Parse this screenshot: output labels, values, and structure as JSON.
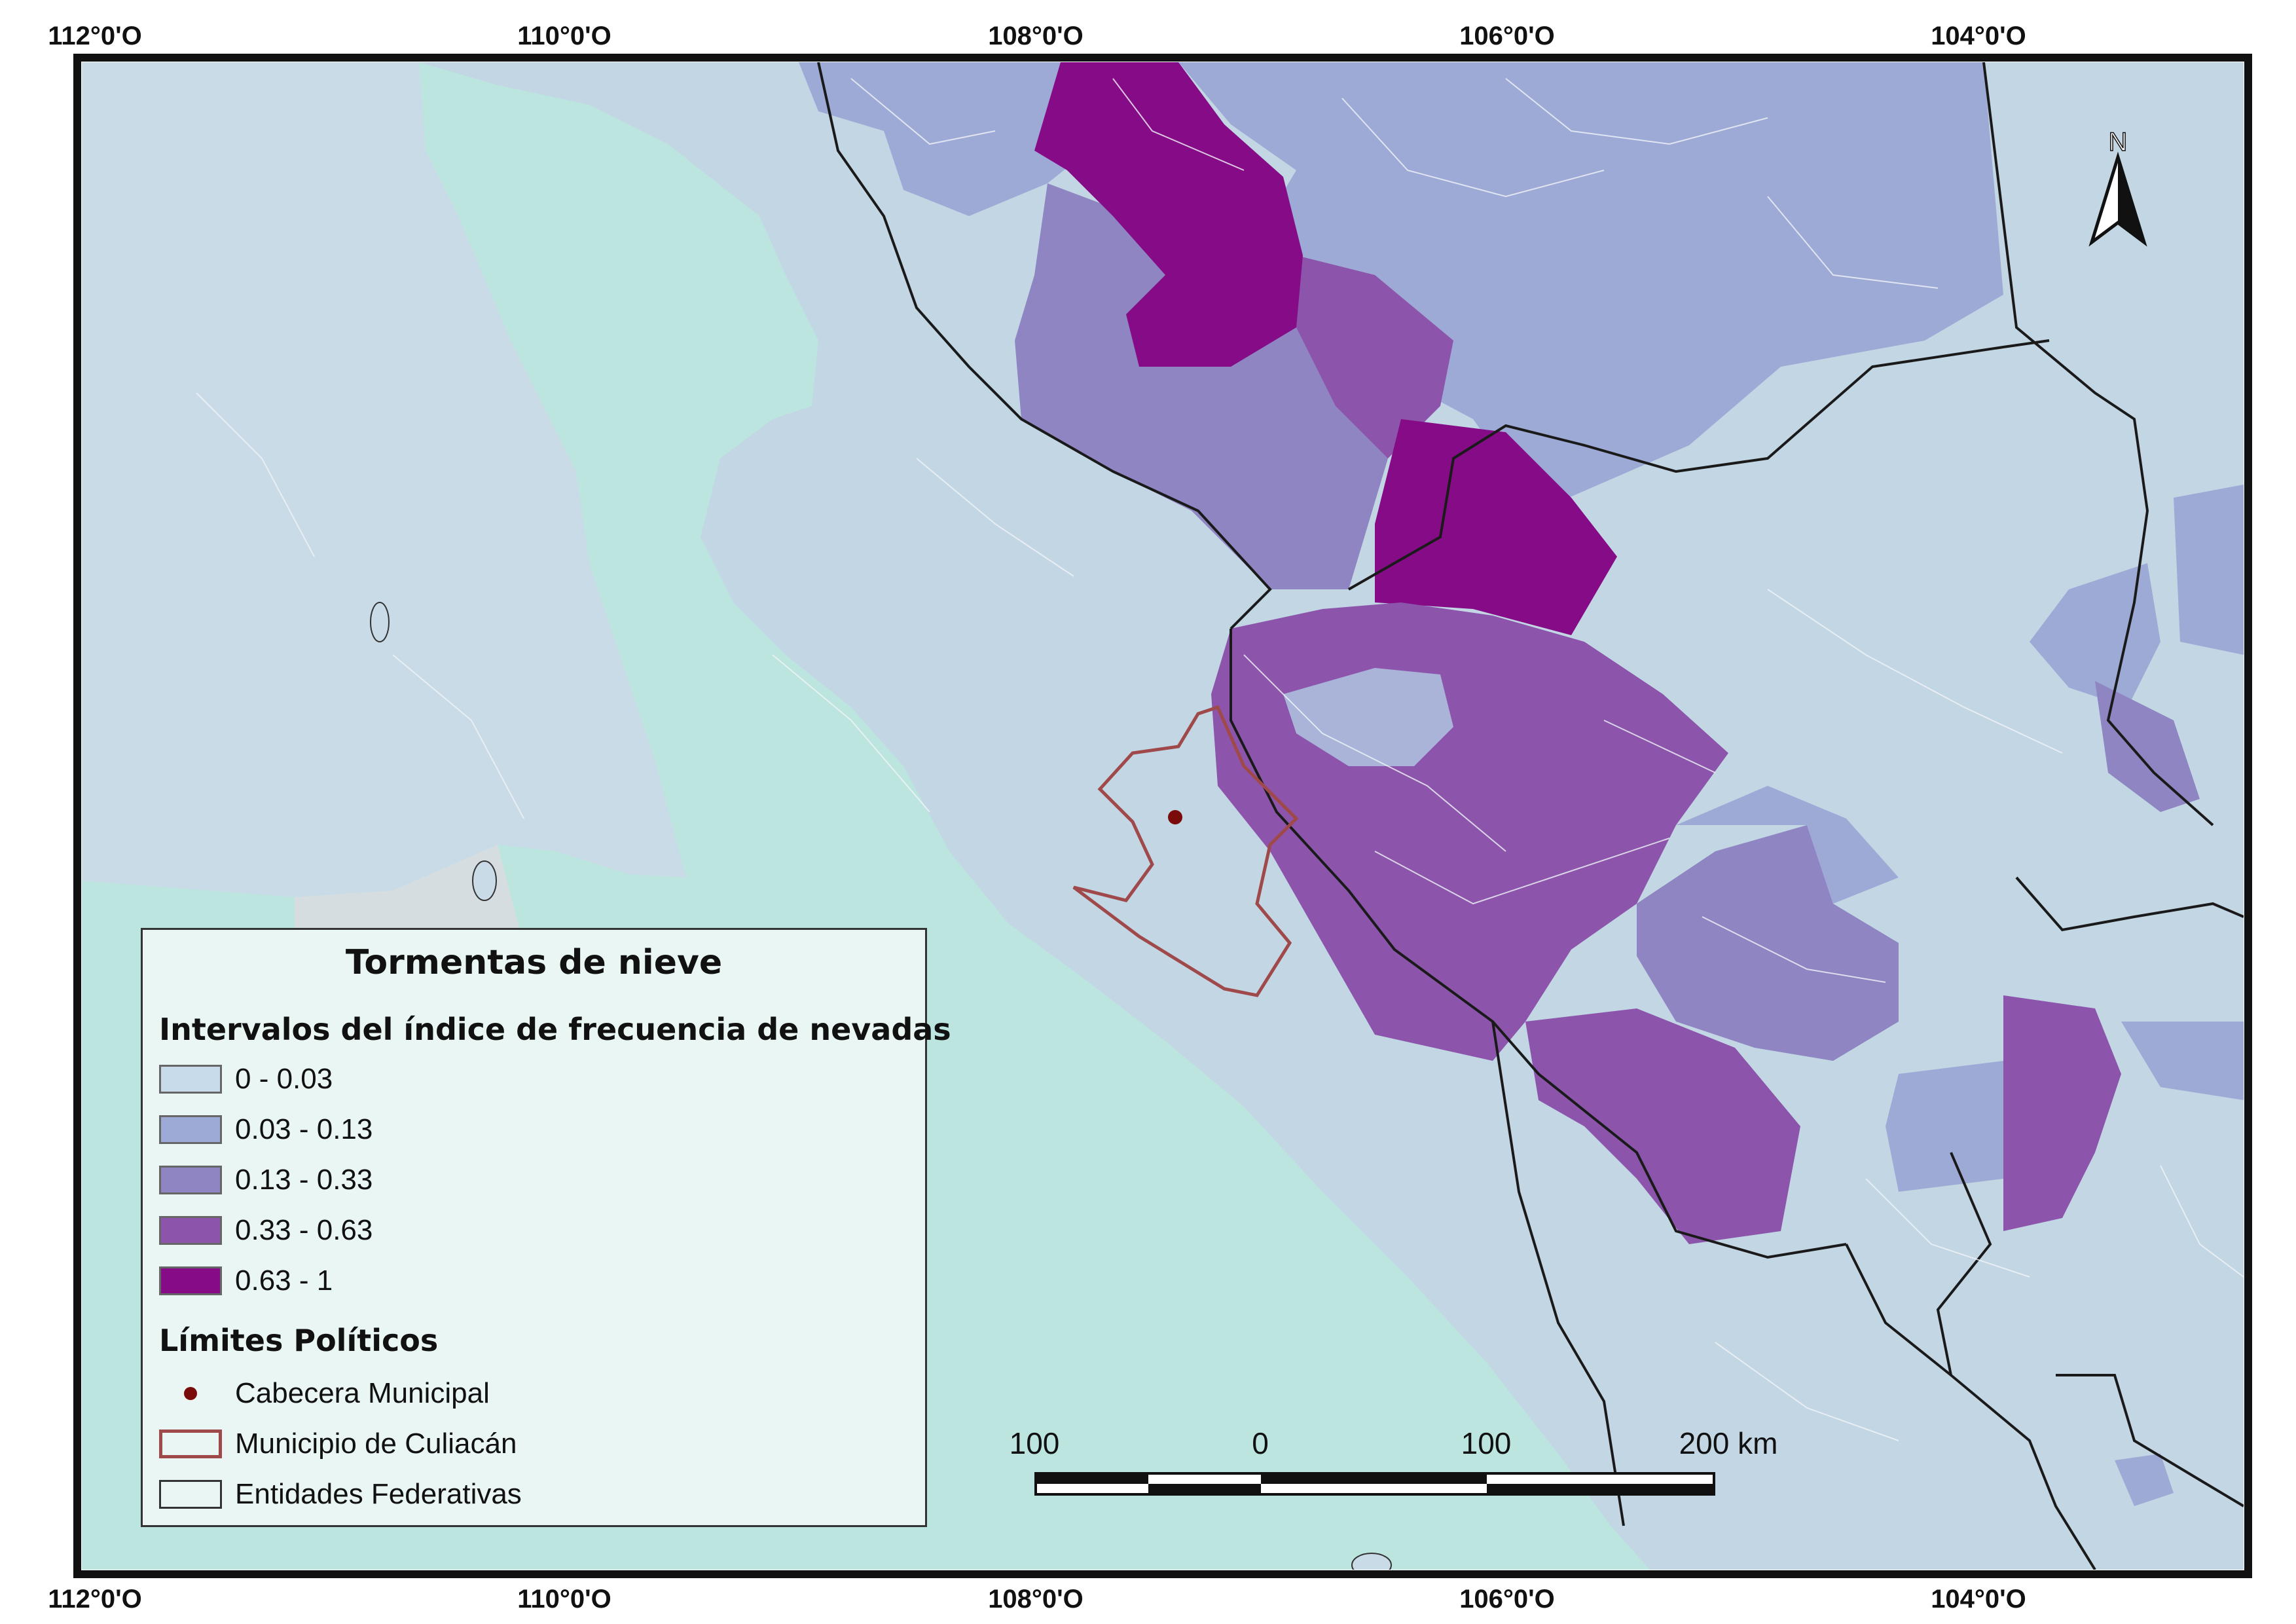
{
  "coordinates": {
    "top": [
      "112°0'O",
      "110°0'O",
      "108°0'O",
      "106°0'O",
      "104°0'O"
    ],
    "bottom": [
      "112°0'O",
      "110°0'O",
      "108°0'O",
      "106°0'O",
      "104°0'O"
    ]
  },
  "north_arrow": {
    "label": "N"
  },
  "legend": {
    "title": "Tormentas de nieve",
    "subtitle": "Intervalos del índice de frecuencia de nevadas",
    "classes": [
      {
        "label": "0 - 0.03",
        "color": "#c7dbea"
      },
      {
        "label": "0.03 - 0.13",
        "color": "#9eaad6"
      },
      {
        "label": "0.13 - 0.33",
        "color": "#8e85c2"
      },
      {
        "label": "0.33 - 0.63",
        "color": "#8c55ab"
      },
      {
        "label": "0.63 - 1",
        "color": "#860c87"
      }
    ],
    "boundaries_title": "Límites Políticos",
    "boundaries": [
      {
        "label": "Cabecera Municipal",
        "symbol": "point",
        "color": "#7a0b0b"
      },
      {
        "label": "Municipio de Culiacán",
        "symbol": "outline",
        "color": "#a0494a"
      },
      {
        "label": "Entidades Federativas",
        "symbol": "box",
        "color": "#e9f6f3"
      }
    ]
  },
  "scale_bar": {
    "labels": [
      "100",
      "0",
      "100",
      "200 km"
    ]
  },
  "colors": {
    "sea": "#bde5e0",
    "land": "#c2d6e4"
  }
}
